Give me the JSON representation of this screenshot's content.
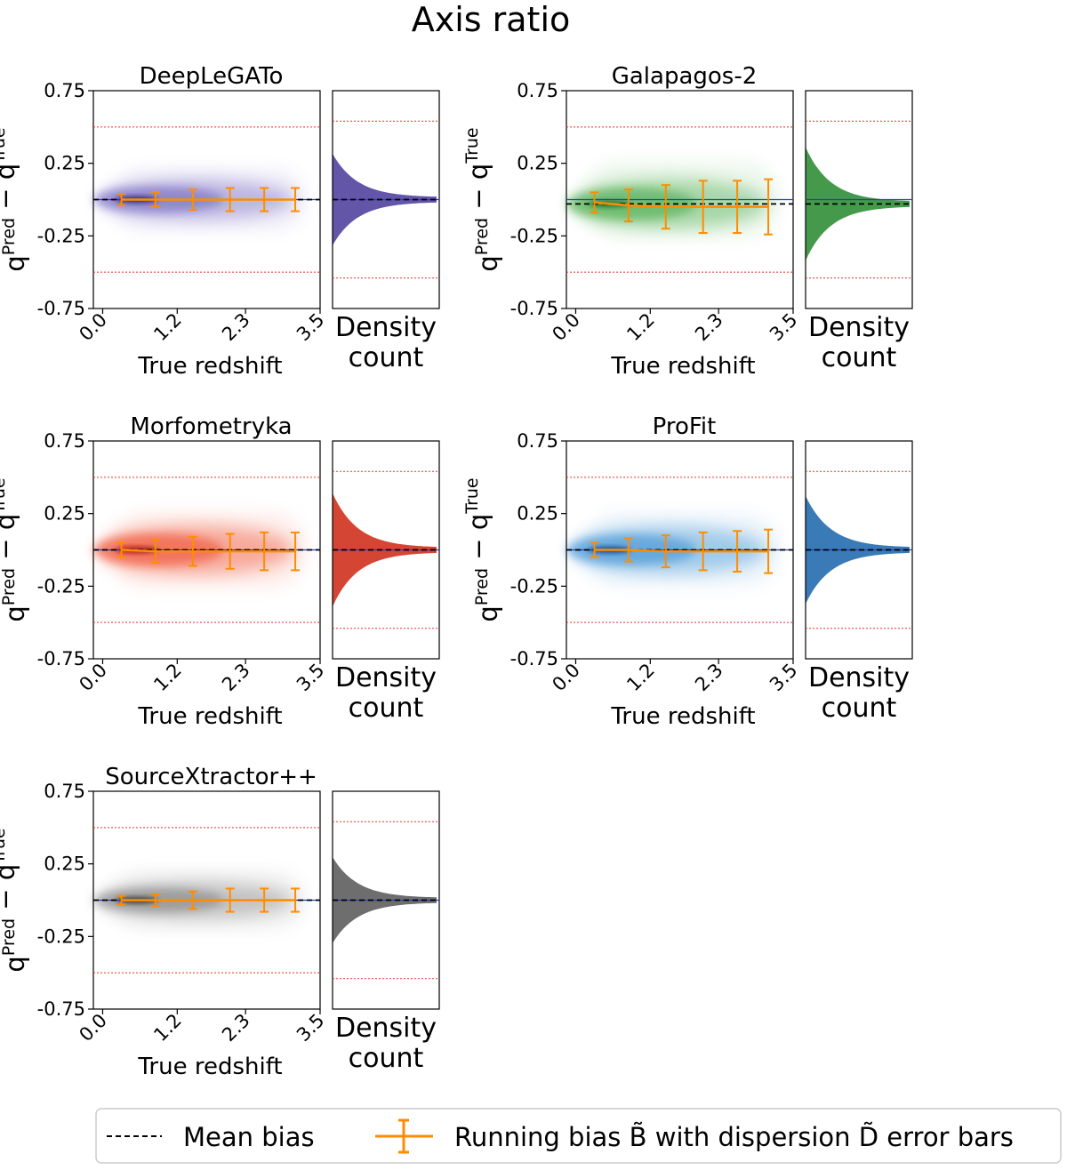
{
  "chart_data": {
    "type": "scatter",
    "title": "Axis ratio",
    "xlabel": "True redshift",
    "ylabel": {
      "var": "q",
      "sup1": "Pred",
      "minus": "−",
      "sup2": "True"
    },
    "xticks": [
      "0.0",
      "1.2",
      "2.3",
      "3.5"
    ],
    "xtick_values": [
      0.0,
      1.2,
      2.3,
      3.5
    ],
    "yticks": [
      "0.75",
      "0.25",
      "-0.25",
      "-0.75"
    ],
    "ytick_values": [
      0.75,
      0.25,
      -0.25,
      -0.75
    ],
    "xlim": [
      -0.15,
      3.5
    ],
    "ylim": [
      -0.75,
      0.75
    ],
    "side_panel_label": [
      "Density",
      "count"
    ],
    "threshold_lines_main": [
      0.5,
      -0.5
    ],
    "threshold_lines_side": [
      0.54,
      -0.54
    ],
    "legend": {
      "mean_bias": "Mean bias",
      "running_bias": "Running bias B̃ with dispersion D̃ error bars"
    },
    "running_bias_x": [
      0.3,
      0.85,
      1.45,
      2.05,
      2.6,
      3.1
    ],
    "panels": [
      {
        "name": "DeepLeGATo",
        "color": "#7b6fc4",
        "dark": "#2a1a70",
        "spread": 0.8,
        "mean_bias": 0.0,
        "running_bias": [
          0.0,
          0.0,
          0.0,
          0.0,
          0.0,
          0.0
        ],
        "dispersion": [
          0.04,
          0.05,
          0.07,
          0.08,
          0.08,
          0.08
        ]
      },
      {
        "name": "Galapagos-2",
        "color": "#52b052",
        "dark": "#1a6a2a",
        "spread": 1.0,
        "mean_bias": -0.03,
        "running_bias": [
          -0.02,
          -0.04,
          -0.05,
          -0.05,
          -0.05,
          -0.05
        ],
        "dispersion": [
          0.07,
          0.11,
          0.15,
          0.18,
          0.18,
          0.19
        ]
      },
      {
        "name": "Morfometryka",
        "color": "#f05a3c",
        "dark": "#a01010",
        "spread": 1.0,
        "mean_bias": 0.0,
        "running_bias": [
          0.0,
          -0.01,
          -0.01,
          -0.01,
          -0.01,
          -0.01
        ],
        "dispersion": [
          0.05,
          0.08,
          0.1,
          0.12,
          0.13,
          0.13
        ]
      },
      {
        "name": "ProFit",
        "color": "#4a98d6",
        "dark": "#0a3a7a",
        "spread": 0.95,
        "mean_bias": 0.0,
        "running_bias": [
          0.0,
          0.0,
          -0.01,
          -0.01,
          -0.01,
          -0.01
        ],
        "dispersion": [
          0.05,
          0.08,
          0.11,
          0.13,
          0.14,
          0.15
        ]
      },
      {
        "name": "SourceXtractor++",
        "color": "#8a8a8a",
        "dark": "#303030",
        "spread": 0.75,
        "mean_bias": 0.0,
        "running_bias": [
          0.0,
          0.0,
          0.0,
          0.0,
          0.0,
          0.0
        ],
        "dispersion": [
          0.03,
          0.04,
          0.06,
          0.08,
          0.08,
          0.08
        ]
      }
    ]
  }
}
